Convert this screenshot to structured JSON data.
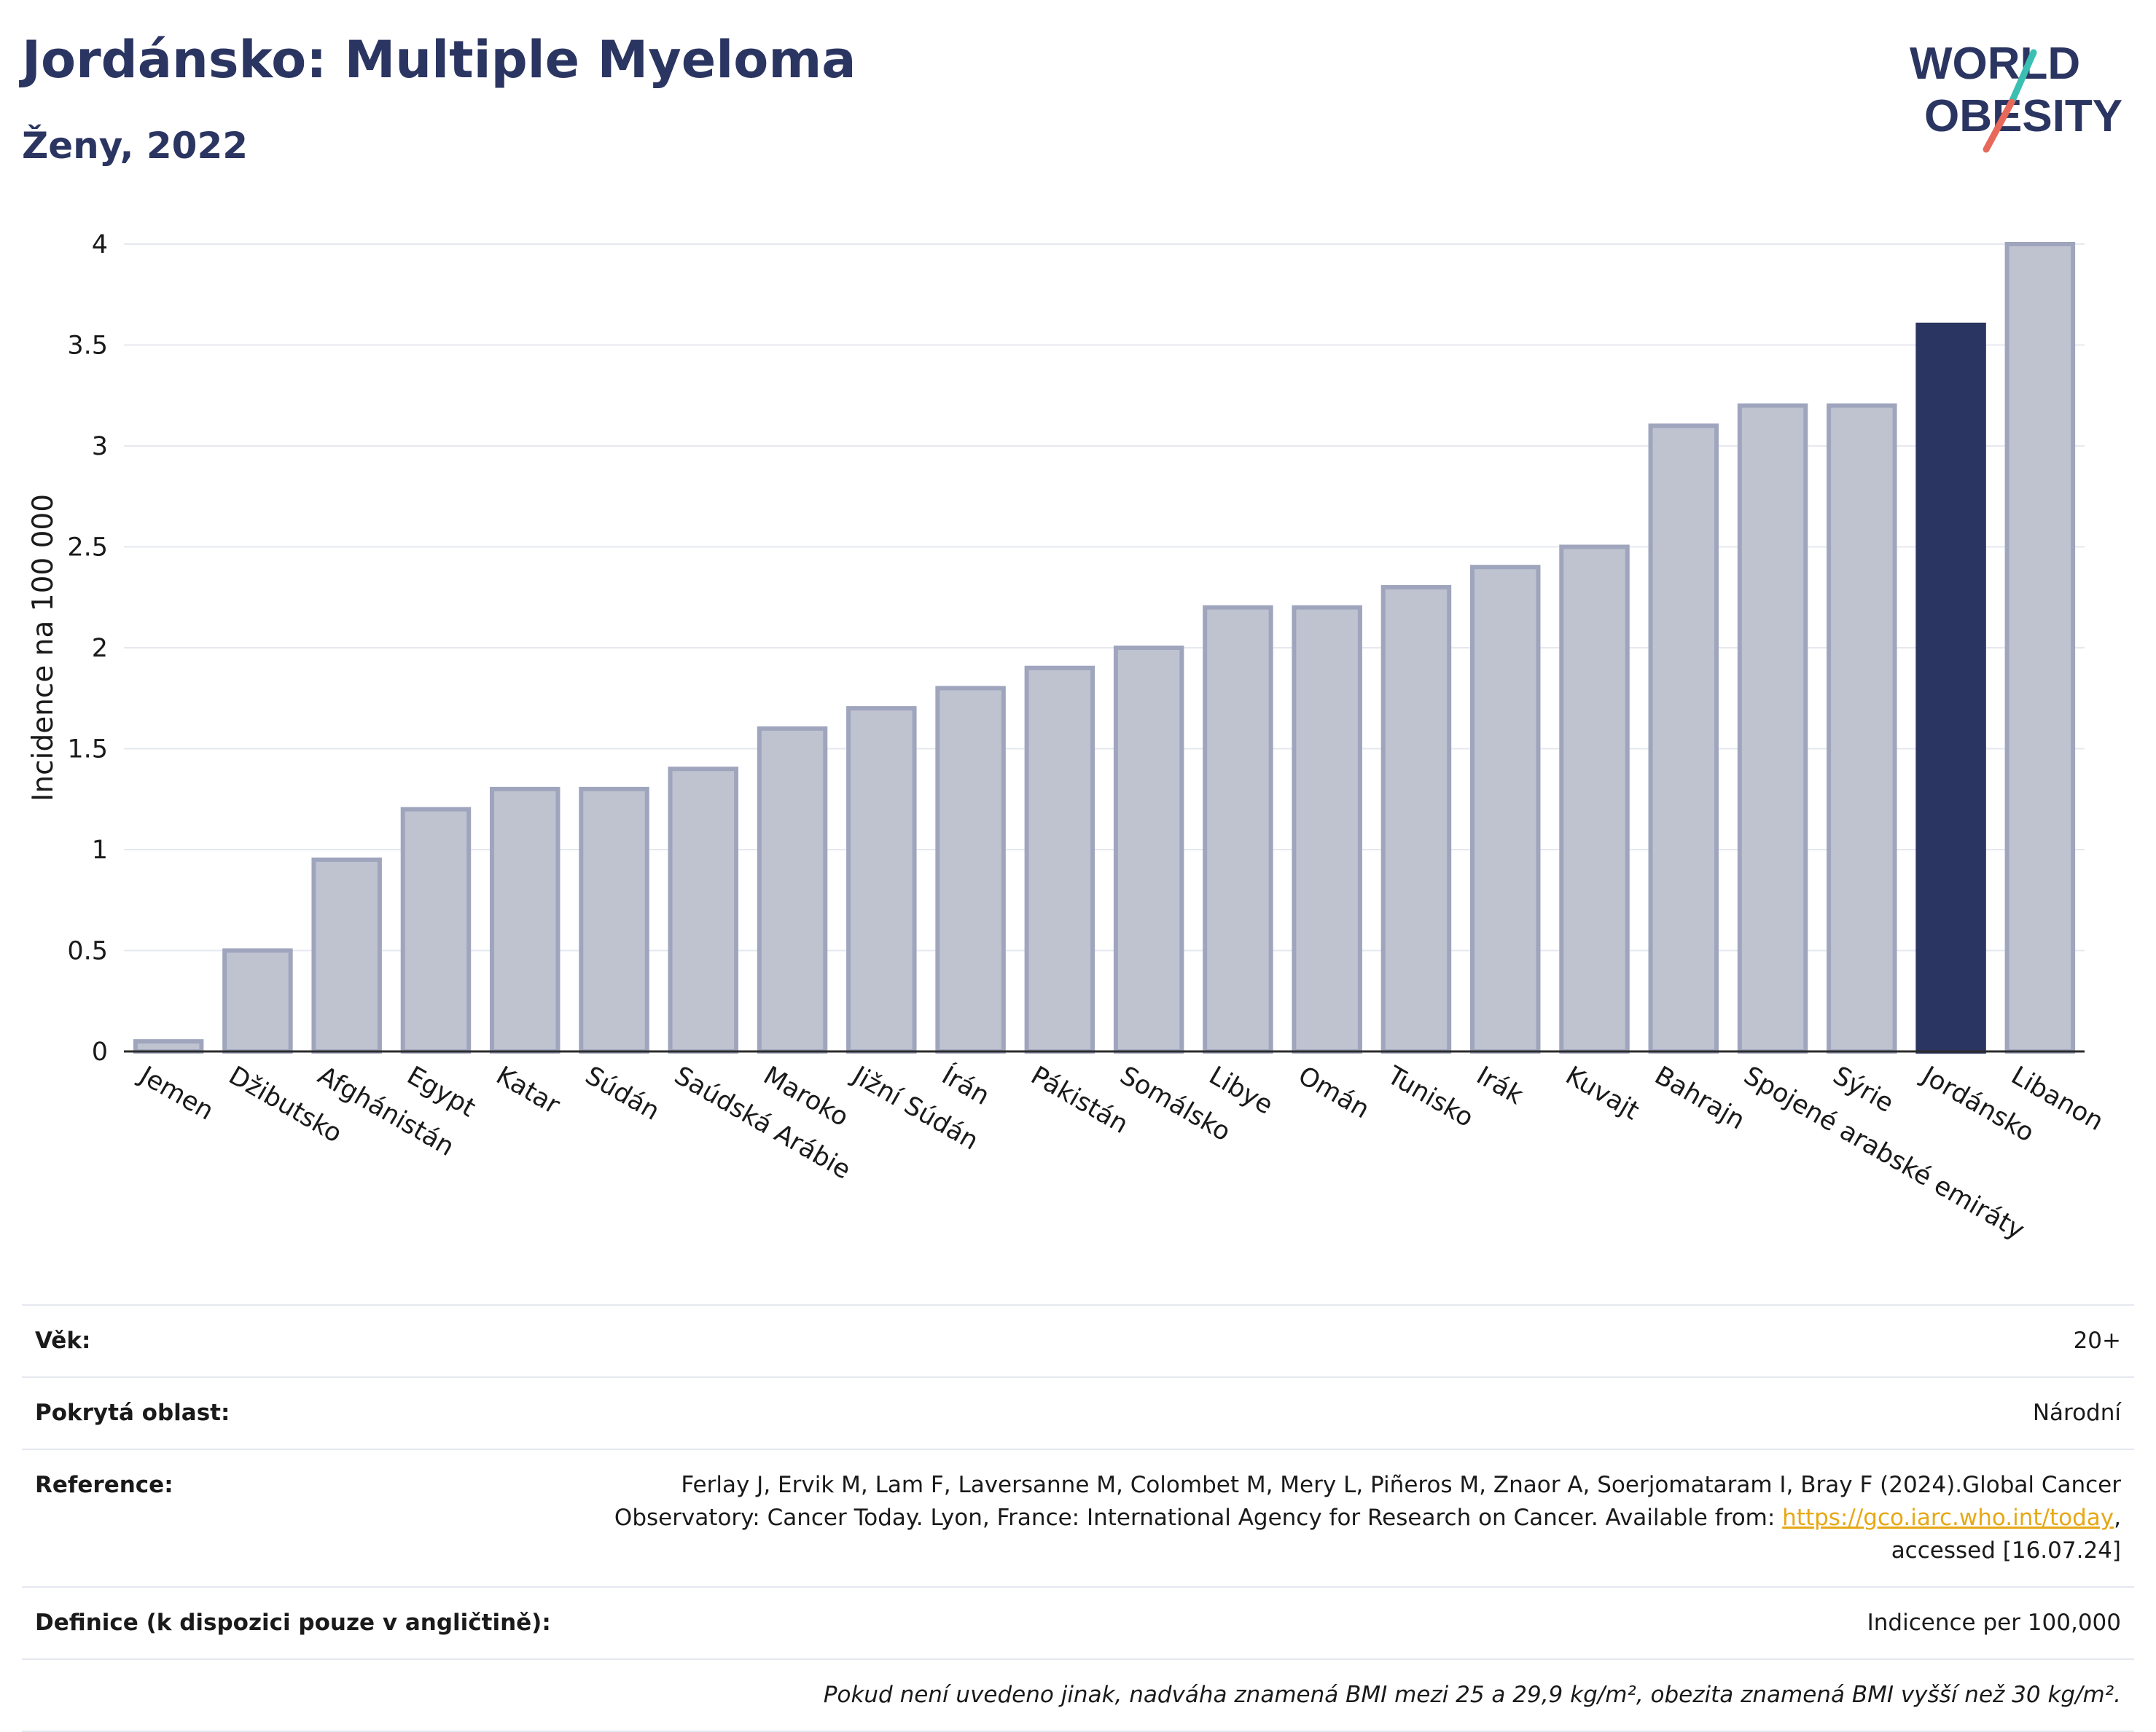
{
  "header": {
    "title": "Jordánsko: Multiple Myeloma",
    "subtitle": "Ženy, 2022"
  },
  "logo": {
    "line1": "WORLD",
    "line2": "OBESITY",
    "colors": {
      "text": "#2b3561",
      "slash_teal": "#3bbfb3",
      "slash_red": "#e8685a"
    }
  },
  "chart_data": {
    "type": "bar",
    "categories": [
      "Jemen",
      "Džibutsko",
      "Afghánistán",
      "Egypt",
      "Katar",
      "Súdán",
      "Saúdská Arábie",
      "Maroko",
      "Jižní Súdán",
      "Írán",
      "Pákistán",
      "Somálsko",
      "Libye",
      "Omán",
      "Tunisko",
      "Irák",
      "Kuvajt",
      "Bahrajn",
      "Spojené arabské emiráty",
      "Sýrie",
      "Jordánsko",
      "Libanon"
    ],
    "values": [
      0.05,
      0.5,
      0.95,
      1.2,
      1.3,
      1.3,
      1.4,
      1.6,
      1.7,
      1.8,
      1.9,
      2.0,
      2.2,
      2.2,
      2.3,
      2.4,
      2.5,
      3.1,
      3.2,
      3.2,
      3.6,
      4.0
    ],
    "highlight": "Jordánsko",
    "ylabel": "Incidence na 100 000",
    "xlabel": "",
    "ylim": [
      0,
      4
    ],
    "yticks": [
      0,
      0.5,
      1,
      1.5,
      2,
      2.5,
      3,
      3.5,
      4
    ],
    "ytick_labels": [
      "0",
      "0.5",
      "1",
      "1.5",
      "2",
      "2.5",
      "3",
      "3.5",
      "4"
    ],
    "grid": true,
    "colors": {
      "bar": "#bfc3d0",
      "bar_edge": "#9fa5bd",
      "highlight": "#2b3561",
      "grid": "#e6e8f0",
      "axis": "#2b2b2b"
    }
  },
  "info": {
    "rows": [
      {
        "label": "Věk:",
        "value": "20+"
      },
      {
        "label": "Pokrytá oblast:",
        "value": "Národní"
      },
      {
        "label": "Reference:",
        "value_before": "Ferlay J, Ervik M, Lam F, Laversanne M, Colombet M, Mery L, Piñeros M, Znaor A, Soerjomataram I, Bray F (2024).Global Cancer Observatory: Cancer Today. Lyon, France: International Agency for Research on Cancer. Available from: ",
        "link": "https://gco.iarc.who.int/today",
        "value_after": ", accessed [16.07.24]"
      },
      {
        "label": "Definice (k dispozici pouze v angličtině):",
        "value": "Indicence per 100,000"
      }
    ],
    "note": "Pokud není uvedeno jinak, nadváha znamená BMI mezi 25 a 29,9 kg/m², obezita znamená BMI vyšší než 30 kg/m²."
  }
}
